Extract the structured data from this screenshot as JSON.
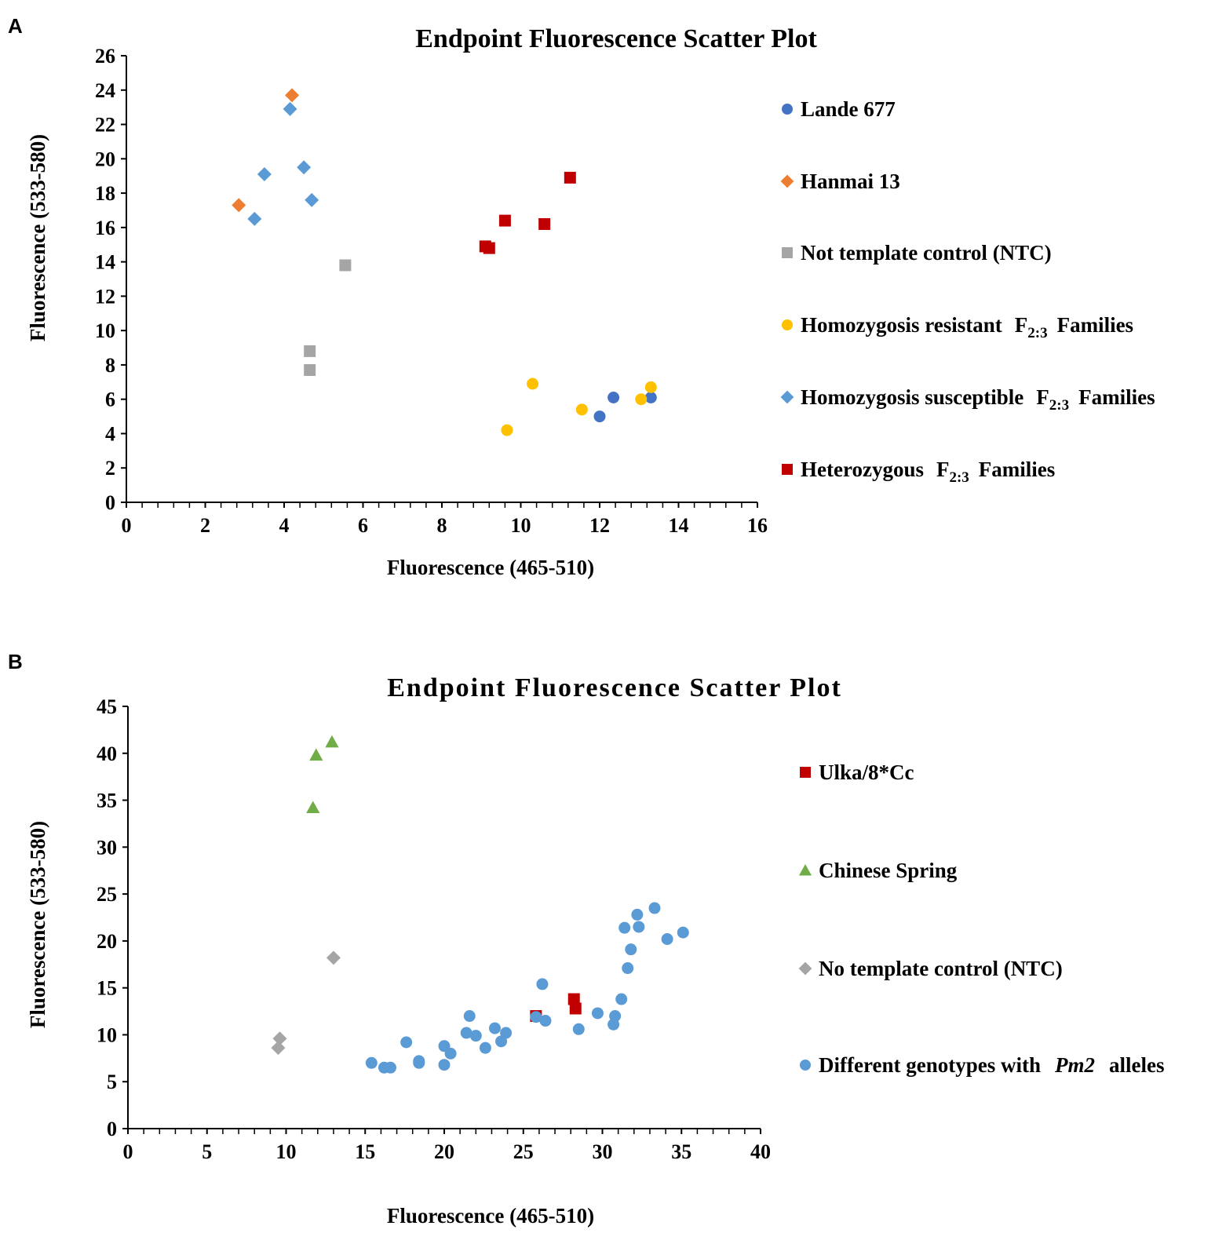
{
  "chart_data": [
    {
      "panel": "A",
      "type": "scatter",
      "title": "Endpoint Fluorescence Scatter Plot",
      "xlabel": "Fluorescence (465-510)",
      "ylabel": "Fluorescence (533-580)",
      "xlim": [
        0,
        16
      ],
      "ylim": [
        0,
        26
      ],
      "xticks": [
        "0",
        "2",
        "4",
        "6",
        "8",
        "10",
        "12",
        "14",
        "16"
      ],
      "yticks": [
        "0",
        "2",
        "4",
        "6",
        "8",
        "10",
        "12",
        "14",
        "16",
        "18",
        "20",
        "22",
        "24",
        "26"
      ],
      "legend_position": "right",
      "series": [
        {
          "name": "Lande 677",
          "marker": "circle",
          "color": "#4472C4",
          "points": [
            [
              12.0,
              5.0
            ],
            [
              12.35,
              6.1
            ],
            [
              13.3,
              6.1
            ]
          ]
        },
        {
          "name": "Hanmai 13",
          "marker": "diamond",
          "color": "#ED7D31",
          "points": [
            [
              4.2,
              23.7
            ],
            [
              2.85,
              17.3
            ]
          ]
        },
        {
          "name": "Not template control (NTC)",
          "marker": "square",
          "color": "#A5A5A5",
          "points": [
            [
              5.55,
              13.8
            ],
            [
              4.65,
              8.8
            ],
            [
              4.65,
              7.7
            ]
          ]
        },
        {
          "name": "Homozygosis resistant",
          "subscript_label": "F",
          "sub": "2:3",
          "suffix": "Families",
          "marker": "circle",
          "color": "#FFC000",
          "points": [
            [
              9.65,
              4.2
            ],
            [
              10.3,
              6.9
            ],
            [
              11.55,
              5.4
            ],
            [
              13.05,
              6.0
            ],
            [
              13.3,
              6.7
            ]
          ]
        },
        {
          "name": "Homozygosis susceptible",
          "subscript_label": "F",
          "sub": "2:3",
          "suffix": "Families",
          "marker": "diamond",
          "color": "#5B9BD5",
          "points": [
            [
              4.15,
              22.9
            ],
            [
              3.5,
              19.1
            ],
            [
              4.5,
              19.5
            ],
            [
              4.7,
              17.6
            ],
            [
              3.25,
              16.5
            ]
          ]
        },
        {
          "name": "Heterozygous",
          "subscript_label": "F",
          "sub": "2:3",
          "suffix": "Families",
          "marker": "square",
          "color": "#C00000",
          "points": [
            [
              11.25,
              18.9
            ],
            [
              9.6,
              16.4
            ],
            [
              10.6,
              16.2
            ],
            [
              9.1,
              14.9
            ],
            [
              9.2,
              14.8
            ]
          ]
        }
      ]
    },
    {
      "panel": "B",
      "type": "scatter",
      "title": "Endpoint Fluorescence Scatter Plot",
      "xlabel": "Fluorescence (465-510)",
      "ylabel": "Fluorescence (533-580)",
      "xlim": [
        0,
        40
      ],
      "ylim": [
        0,
        45
      ],
      "xticks": [
        "0",
        "5",
        "10",
        "15",
        "20",
        "25",
        "30",
        "35",
        "40"
      ],
      "yticks": [
        "0",
        "5",
        "10",
        "15",
        "20",
        "25",
        "30",
        "35",
        "40",
        "45"
      ],
      "legend_position": "right",
      "series": [
        {
          "name": "Ulka/8*Cc",
          "marker": "square",
          "color": "#C00000",
          "points": [
            [
              25.8,
              12.0
            ],
            [
              28.2,
              13.8
            ],
            [
              28.3,
              12.8
            ]
          ]
        },
        {
          "name": "Chinese Spring",
          "marker": "triangle",
          "color": "#70AD47",
          "points": [
            [
              11.9,
              39.8
            ],
            [
              12.9,
              41.2
            ],
            [
              11.7,
              34.2
            ]
          ]
        },
        {
          "name": "No template control (NTC)",
          "marker": "diamond",
          "color": "#A5A5A5",
          "points": [
            [
              13.0,
              18.2
            ],
            [
              9.6,
              9.6
            ],
            [
              9.5,
              8.6
            ]
          ]
        },
        {
          "name": "Different genotypes with",
          "italic_part": "Pm2",
          "suffix": "alleles",
          "marker": "circle",
          "color": "#5B9BD5",
          "points": [
            [
              15.4,
              7.0
            ],
            [
              16.2,
              6.5
            ],
            [
              16.6,
              6.5
            ],
            [
              17.6,
              9.2
            ],
            [
              18.4,
              7.2
            ],
            [
              18.4,
              7.0
            ],
            [
              20.0,
              8.8
            ],
            [
              20.0,
              6.8
            ],
            [
              20.4,
              8.0
            ],
            [
              21.4,
              10.2
            ],
            [
              21.6,
              12.0
            ],
            [
              22.0,
              9.9
            ],
            [
              22.6,
              8.6
            ],
            [
              23.2,
              10.7
            ],
            [
              23.6,
              9.3
            ],
            [
              23.9,
              10.2
            ],
            [
              25.8,
              11.9
            ],
            [
              26.2,
              15.4
            ],
            [
              26.4,
              11.5
            ],
            [
              28.5,
              10.6
            ],
            [
              29.7,
              12.3
            ],
            [
              30.7,
              11.1
            ],
            [
              30.8,
              12.0
            ],
            [
              31.2,
              13.8
            ],
            [
              31.4,
              21.4
            ],
            [
              31.6,
              17.1
            ],
            [
              31.8,
              19.1
            ],
            [
              32.2,
              22.8
            ],
            [
              32.3,
              21.5
            ],
            [
              33.3,
              23.5
            ],
            [
              34.1,
              20.2
            ],
            [
              35.1,
              20.9
            ]
          ]
        }
      ]
    }
  ]
}
